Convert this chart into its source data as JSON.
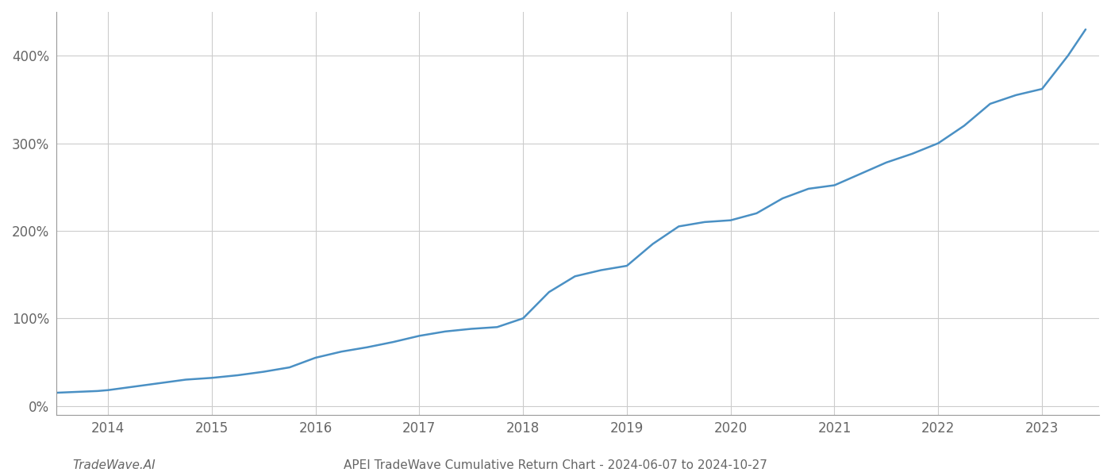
{
  "title": "APEI TradeWave Cumulative Return Chart - 2024-06-07 to 2024-10-27",
  "watermark": "TradeWave.AI",
  "line_color": "#4a90c4",
  "background_color": "#ffffff",
  "grid_color": "#cccccc",
  "x_years": [
    2014,
    2015,
    2016,
    2017,
    2018,
    2019,
    2020,
    2021,
    2022,
    2023
  ],
  "x_data": [
    2013.5,
    2013.7,
    2013.9,
    2014.0,
    2014.25,
    2014.5,
    2014.75,
    2015.0,
    2015.25,
    2015.5,
    2015.75,
    2016.0,
    2016.25,
    2016.5,
    2016.75,
    2017.0,
    2017.25,
    2017.5,
    2017.75,
    2018.0,
    2018.25,
    2018.5,
    2018.75,
    2019.0,
    2019.25,
    2019.5,
    2019.75,
    2020.0,
    2020.25,
    2020.5,
    2020.75,
    2021.0,
    2021.25,
    2021.5,
    2021.75,
    2022.0,
    2022.25,
    2022.5,
    2022.75,
    2023.0,
    2023.25,
    2023.42
  ],
  "y_data": [
    15,
    16,
    17,
    18,
    22,
    26,
    30,
    32,
    35,
    39,
    44,
    55,
    62,
    67,
    73,
    80,
    85,
    88,
    90,
    100,
    130,
    148,
    155,
    160,
    185,
    205,
    210,
    212,
    220,
    237,
    248,
    252,
    265,
    278,
    288,
    300,
    320,
    345,
    355,
    362,
    400,
    430
  ],
  "ylim": [
    -10,
    450
  ],
  "yticks": [
    0,
    100,
    200,
    300,
    400
  ],
  "xlim": [
    2013.5,
    2023.55
  ],
  "line_width": 1.8,
  "title_fontsize": 11,
  "watermark_fontsize": 11,
  "tick_fontsize": 12,
  "axis_color": "#999999",
  "tick_color": "#666666"
}
